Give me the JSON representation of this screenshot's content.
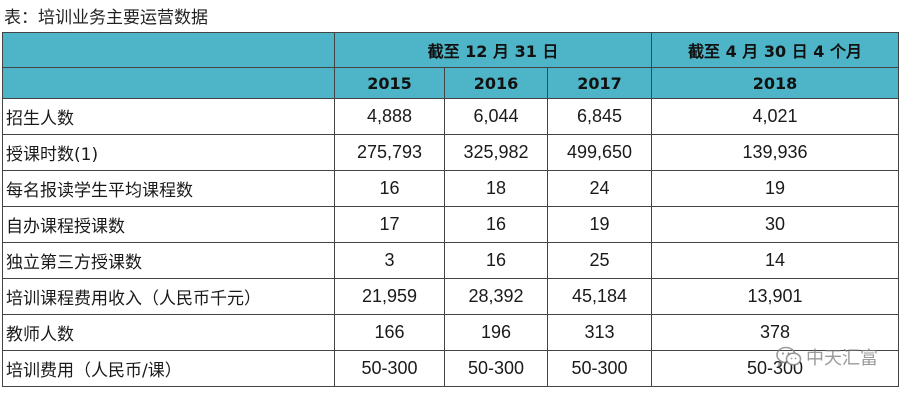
{
  "caption": "表：培训业务主要运营数据",
  "header": {
    "group1": "截至 12 月 31 日",
    "group2": "截至 4 月 30 日 4 个月",
    "years": [
      "2015",
      "2016",
      "2017",
      "2018"
    ]
  },
  "rows": [
    {
      "label": "招生人数",
      "values": [
        "4,888",
        "6,044",
        "6,845",
        "4,021"
      ]
    },
    {
      "label": "授课时数(1)",
      "values": [
        "275,793",
        "325,982",
        "499,650",
        "139,936"
      ]
    },
    {
      "label": "每名报读学生平均课程数",
      "values": [
        "16",
        "18",
        "24",
        "19"
      ]
    },
    {
      "label": "自办课程授课数",
      "values": [
        "17",
        "16",
        "19",
        "30"
      ]
    },
    {
      "label": "独立第三方授课数",
      "values": [
        "3",
        "16",
        "25",
        "14"
      ]
    },
    {
      "label": "培训课程费用收入（人民币千元）",
      "values": [
        "21,959",
        "28,392",
        "45,184",
        "13,901"
      ]
    },
    {
      "label": "教师人数",
      "values": [
        "166",
        "196",
        "313",
        "378"
      ]
    },
    {
      "label": "培训费用（人民币/课）",
      "values": [
        "50-300",
        "50-300",
        "50-300",
        "50-300"
      ]
    }
  ],
  "watermark": {
    "text": "中天汇富",
    "icon": "wechat-icon"
  },
  "colors": {
    "header_bg": "#4db5c7",
    "border": "#444444"
  }
}
